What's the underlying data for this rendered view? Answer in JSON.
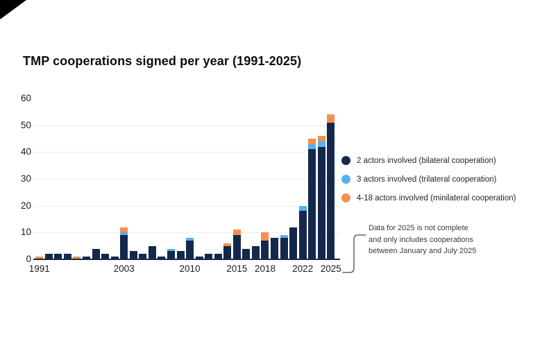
{
  "chart_data": {
    "type": "bar",
    "stacked": true,
    "title": "TMP cooperations signed per year (1991-2025)",
    "xlabel": "",
    "ylabel": "",
    "ylim": [
      0,
      60
    ],
    "yticks": [
      0,
      10,
      20,
      30,
      40,
      50,
      60
    ],
    "grid": "horizontal",
    "legend_position": "right",
    "x_tick_labels": [
      "1991",
      "2003",
      "2010",
      "2015",
      "2018",
      "2022",
      "2025"
    ],
    "series": [
      {
        "key": "bilateral",
        "name": "2 actors involved (bilateral cooperation)",
        "color": "#14284B"
      },
      {
        "key": "trilateral",
        "name": "3 actors involved (trilateral cooperation)",
        "color": "#55B2F0"
      },
      {
        "key": "minilateral",
        "name": "4-18 actors involved (minilateral cooperation)",
        "color": "#F78F4E"
      }
    ],
    "bars": [
      {
        "year": "1991",
        "values": [
          0,
          0,
          1
        ]
      },
      {
        "year": "1992",
        "values": [
          2,
          0,
          0
        ]
      },
      {
        "year": "1993",
        "values": [
          2,
          0,
          0
        ]
      },
      {
        "year": "1994",
        "values": [
          2,
          0,
          0
        ]
      },
      {
        "year": "1995",
        "values": [
          0,
          0,
          1
        ]
      },
      {
        "year": "1997",
        "values": [
          1,
          0,
          0
        ]
      },
      {
        "year": "1998",
        "values": [
          4,
          0,
          0
        ]
      },
      {
        "year": "2000",
        "values": [
          2,
          0,
          0
        ]
      },
      {
        "year": "2002",
        "values": [
          1,
          0,
          0
        ]
      },
      {
        "year": "2003",
        "values": [
          9,
          1,
          2
        ]
      },
      {
        "year": "2004",
        "values": [
          3,
          0,
          0
        ]
      },
      {
        "year": "2005",
        "values": [
          2,
          0,
          0
        ]
      },
      {
        "year": "2006",
        "values": [
          5,
          0,
          0
        ]
      },
      {
        "year": "2007",
        "values": [
          1,
          0,
          0
        ]
      },
      {
        "year": "2008",
        "values": [
          3,
          1,
          0
        ]
      },
      {
        "year": "2009",
        "values": [
          3,
          0,
          0
        ]
      },
      {
        "year": "2010",
        "values": [
          7,
          1,
          0
        ]
      },
      {
        "year": "2011",
        "values": [
          1,
          0,
          0
        ]
      },
      {
        "year": "2012",
        "values": [
          2,
          0,
          0
        ]
      },
      {
        "year": "2013",
        "values": [
          2,
          0,
          0
        ]
      },
      {
        "year": "2014",
        "values": [
          5,
          0,
          1
        ]
      },
      {
        "year": "2015",
        "values": [
          9,
          0,
          2
        ]
      },
      {
        "year": "2016",
        "values": [
          4,
          0,
          0
        ]
      },
      {
        "year": "2017",
        "values": [
          5,
          0,
          0
        ]
      },
      {
        "year": "2018",
        "values": [
          7,
          0,
          3
        ]
      },
      {
        "year": "2019",
        "values": [
          8,
          0,
          0
        ]
      },
      {
        "year": "2020",
        "values": [
          8,
          1,
          0
        ]
      },
      {
        "year": "2021",
        "values": [
          12,
          0,
          0
        ]
      },
      {
        "year": "2022",
        "values": [
          18,
          2,
          0
        ]
      },
      {
        "year": "2023",
        "values": [
          41,
          2,
          2
        ]
      },
      {
        "year": "2024",
        "values": [
          42,
          2,
          2
        ]
      },
      {
        "year": "2025",
        "values": [
          51,
          0,
          3
        ]
      }
    ],
    "annotation": {
      "lines": [
        "Data for 2025 is not complete",
        "and only includes cooperations",
        "between January and July 2025"
      ]
    }
  },
  "colors": {
    "gridline": "#EDEDED",
    "axis_line": "#14284B",
    "title_text": "#0D0D0D",
    "tick_text": "#1A1A1A",
    "legend_text": "#20242C",
    "annotation_text": "#3A3A3A",
    "connector_line": "#4A4A4A",
    "corner_decoration": "#000000"
  }
}
